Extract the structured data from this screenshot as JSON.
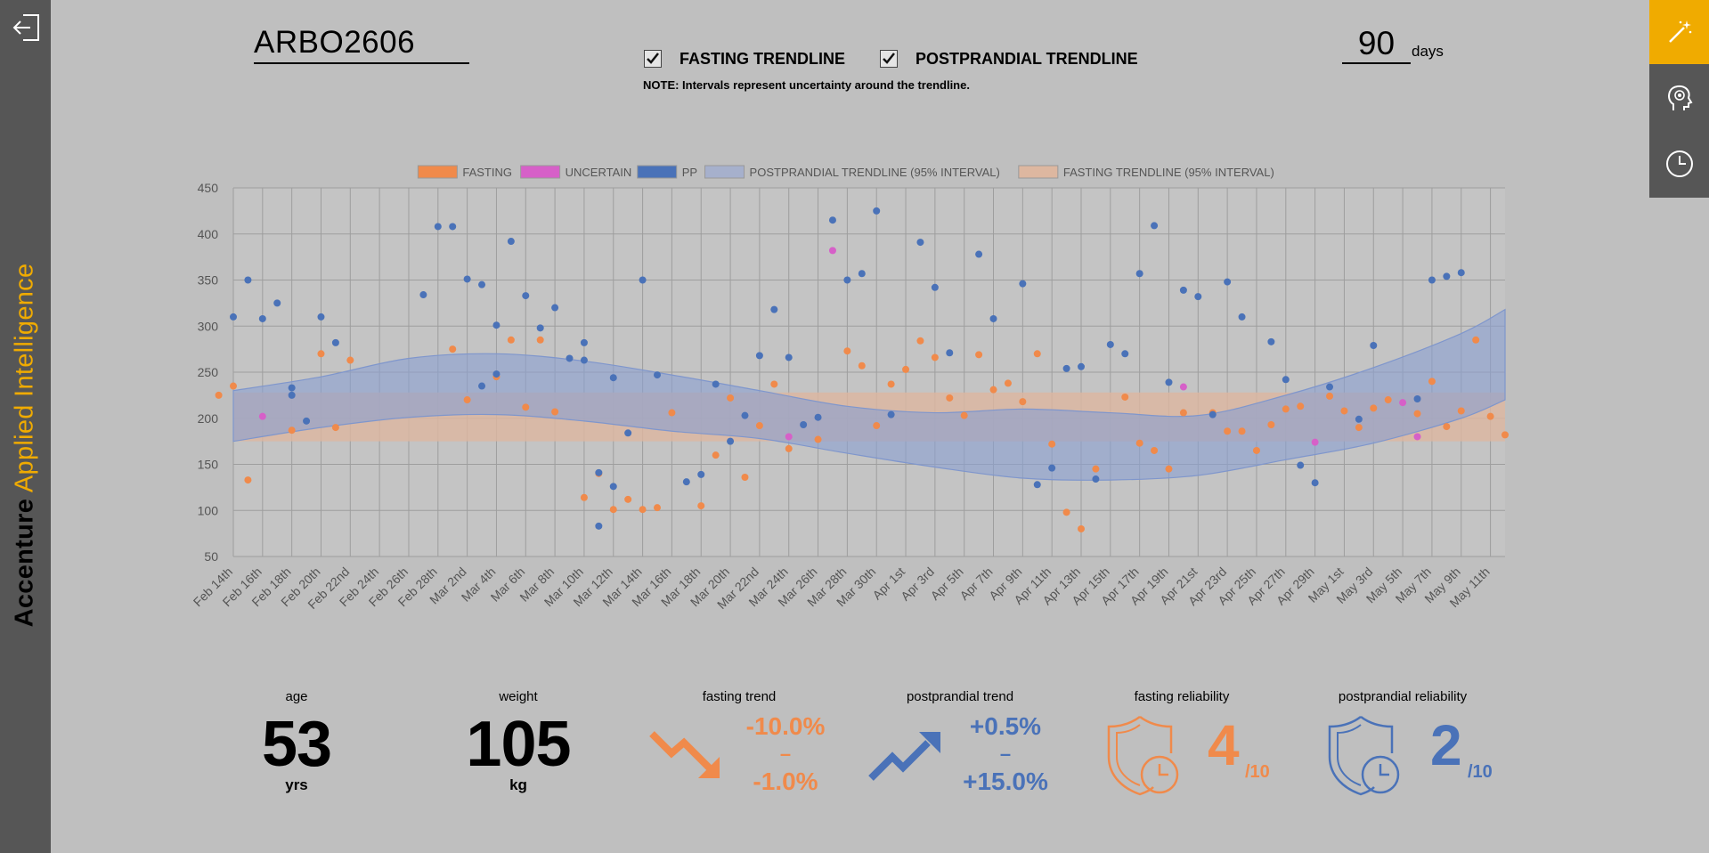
{
  "sidebar": {
    "brand_part1": "Accenture",
    "brand_part2": "Applied Intelligence",
    "back_icon": "back-arrow-icon"
  },
  "right_toolbar": {
    "items": [
      {
        "icon": "magic-wand-icon",
        "active": true
      },
      {
        "icon": "head-profile-icon",
        "active": false
      },
      {
        "icon": "clock-icon",
        "active": false
      }
    ]
  },
  "header": {
    "patient_id": "ARBO2606",
    "fasting_trendline_label": "FASTING TRENDLINE",
    "fasting_trendline_checked": true,
    "postprandial_trendline_label": "POSTPRANDIAL TRENDLINE",
    "postprandial_trendline_checked": true,
    "note": "NOTE: Intervals represent uncertainty around the trendline.",
    "days_value": "90",
    "days_unit": "days"
  },
  "colors": {
    "fasting": "#f08a4b",
    "uncertain": "#d660c8",
    "pp": "#4a72b8",
    "pp_band": "#8a9fd0",
    "fasting_band": "#e8a77c",
    "accent": "#f0ab00"
  },
  "chart_data": {
    "type": "scatter",
    "legend": [
      {
        "label": "FASTING",
        "color": "#f08a4b"
      },
      {
        "label": "UNCERTAIN",
        "color": "#d660c8"
      },
      {
        "label": "PP",
        "color": "#4a72b8"
      },
      {
        "label": "POSTPRANDIAL TRENDLINE (95% INTERVAL)",
        "color": "#a6b0cc"
      },
      {
        "label": "FASTING TRENDLINE (95% INTERVAL)",
        "color": "#ddb7a0"
      }
    ],
    "legend_position": "top-center",
    "grid": true,
    "ylim": [
      50,
      450
    ],
    "yticks": [
      50,
      100,
      150,
      200,
      250,
      300,
      350,
      400,
      450
    ],
    "x_start": "2019-02-14",
    "x_end": "2019-05-12",
    "xtick_labels": [
      "Feb 14th",
      "Feb 16th",
      "Feb 18th",
      "Feb 20th",
      "Feb 22nd",
      "Feb 24th",
      "Feb 26th",
      "Feb 28th",
      "Mar 2nd",
      "Mar 4th",
      "Mar 6th",
      "Mar 8th",
      "Mar 10th",
      "Mar 12th",
      "Mar 14th",
      "Mar 16th",
      "Mar 18th",
      "Mar 20th",
      "Mar 22nd",
      "Mar 24th",
      "Mar 26th",
      "Mar 28th",
      "Mar 30th",
      "Apr 1st",
      "Apr 3rd",
      "Apr 5th",
      "Apr 7th",
      "Apr 9th",
      "Apr 11th",
      "Apr 13th",
      "Apr 15th",
      "Apr 17th",
      "Apr 19th",
      "Apr 21st",
      "Apr 23rd",
      "Apr 25th",
      "Apr 27th",
      "Apr 29th",
      "May 1st",
      "May 3rd",
      "May 5th",
      "May 7th",
      "May 9th",
      "May 11th"
    ],
    "fasting_band": {
      "lower": 175,
      "upper": 228
    },
    "pp_band": [
      {
        "date": "2019-02-14",
        "lower": 175,
        "upper": 230
      },
      {
        "date": "2019-02-20",
        "lower": 190,
        "upper": 245
      },
      {
        "date": "2019-02-26",
        "lower": 201,
        "upper": 265
      },
      {
        "date": "2019-03-04",
        "lower": 204,
        "upper": 270
      },
      {
        "date": "2019-03-10",
        "lower": 197,
        "upper": 262
      },
      {
        "date": "2019-03-16",
        "lower": 186,
        "upper": 247
      },
      {
        "date": "2019-03-22",
        "lower": 178,
        "upper": 230
      },
      {
        "date": "2019-03-28",
        "lower": 162,
        "upper": 213
      },
      {
        "date": "2019-04-03",
        "lower": 147,
        "upper": 206
      },
      {
        "date": "2019-04-09",
        "lower": 135,
        "upper": 210
      },
      {
        "date": "2019-04-15",
        "lower": 133,
        "upper": 206
      },
      {
        "date": "2019-04-21",
        "lower": 138,
        "upper": 203
      },
      {
        "date": "2019-04-27",
        "lower": 155,
        "upper": 225
      },
      {
        "date": "2019-05-03",
        "lower": 173,
        "upper": 255
      },
      {
        "date": "2019-05-09",
        "lower": 200,
        "upper": 292
      },
      {
        "date": "2019-05-12",
        "lower": 220,
        "upper": 318
      }
    ],
    "series": [
      {
        "name": "FASTING",
        "color": "#f08a4b",
        "points": [
          [
            "2019-02-13",
            225
          ],
          [
            "2019-02-14",
            235
          ],
          [
            "2019-02-15",
            133
          ],
          [
            "2019-02-18",
            187
          ],
          [
            "2019-02-20",
            270
          ],
          [
            "2019-02-21",
            190
          ],
          [
            "2019-02-22",
            263
          ],
          [
            "2019-03-01",
            275
          ],
          [
            "2019-03-02",
            220
          ],
          [
            "2019-03-04",
            245
          ],
          [
            "2019-03-05",
            285
          ],
          [
            "2019-03-06",
            212
          ],
          [
            "2019-03-07",
            285
          ],
          [
            "2019-03-08",
            207
          ],
          [
            "2019-03-10",
            114
          ],
          [
            "2019-03-11",
            140
          ],
          [
            "2019-03-12",
            101
          ],
          [
            "2019-03-13",
            112
          ],
          [
            "2019-03-14",
            101
          ],
          [
            "2019-03-15",
            103
          ],
          [
            "2019-03-16",
            206
          ],
          [
            "2019-03-18",
            105
          ],
          [
            "2019-03-19",
            160
          ],
          [
            "2019-03-20",
            222
          ],
          [
            "2019-03-21",
            136
          ],
          [
            "2019-03-22",
            192
          ],
          [
            "2019-03-23",
            237
          ],
          [
            "2019-03-24",
            167
          ],
          [
            "2019-03-26",
            177
          ],
          [
            "2019-03-28",
            273
          ],
          [
            "2019-03-29",
            257
          ],
          [
            "2019-03-30",
            192
          ],
          [
            "2019-03-31",
            237
          ],
          [
            "2019-04-01",
            253
          ],
          [
            "2019-04-02",
            284
          ],
          [
            "2019-04-03",
            266
          ],
          [
            "2019-04-04",
            222
          ],
          [
            "2019-04-05",
            203
          ],
          [
            "2019-04-06",
            269
          ],
          [
            "2019-04-07",
            231
          ],
          [
            "2019-04-08",
            238
          ],
          [
            "2019-04-09",
            218
          ],
          [
            "2019-04-10",
            270
          ],
          [
            "2019-04-11",
            172
          ],
          [
            "2019-04-12",
            98
          ],
          [
            "2019-04-13",
            80
          ],
          [
            "2019-04-14",
            145
          ],
          [
            "2019-04-16",
            223
          ],
          [
            "2019-04-17",
            173
          ],
          [
            "2019-04-18",
            165
          ],
          [
            "2019-04-19",
            145
          ],
          [
            "2019-04-20",
            206
          ],
          [
            "2019-04-22",
            206
          ],
          [
            "2019-04-23",
            186
          ],
          [
            "2019-04-24",
            186
          ],
          [
            "2019-04-25",
            165
          ],
          [
            "2019-04-26",
            193
          ],
          [
            "2019-04-27",
            210
          ],
          [
            "2019-04-28",
            213
          ],
          [
            "2019-04-30",
            224
          ],
          [
            "2019-05-01",
            208
          ],
          [
            "2019-05-02",
            190
          ],
          [
            "2019-05-03",
            211
          ],
          [
            "2019-05-04",
            220
          ],
          [
            "2019-05-06",
            205
          ],
          [
            "2019-05-07",
            240
          ],
          [
            "2019-05-08",
            191
          ],
          [
            "2019-05-09",
            208
          ],
          [
            "2019-05-10",
            285
          ],
          [
            "2019-05-11",
            202
          ],
          [
            "2019-05-12",
            182
          ]
        ]
      },
      {
        "name": "UNCERTAIN",
        "color": "#d660c8",
        "points": [
          [
            "2019-02-16",
            202
          ],
          [
            "2019-03-24",
            180
          ],
          [
            "2019-03-27",
            382
          ],
          [
            "2019-04-20",
            234
          ],
          [
            "2019-04-29",
            174
          ],
          [
            "2019-05-05",
            217
          ],
          [
            "2019-05-06",
            180
          ]
        ]
      },
      {
        "name": "PP",
        "color": "#4a72b8",
        "points": [
          [
            "2019-02-14",
            310
          ],
          [
            "2019-02-15",
            350
          ],
          [
            "2019-02-16",
            308
          ],
          [
            "2019-02-17",
            325
          ],
          [
            "2019-02-18",
            225
          ],
          [
            "2019-02-18",
            233
          ],
          [
            "2019-02-19",
            197
          ],
          [
            "2019-02-20",
            310
          ],
          [
            "2019-02-21",
            282
          ],
          [
            "2019-02-27",
            334
          ],
          [
            "2019-02-28",
            408
          ],
          [
            "2019-03-01",
            408
          ],
          [
            "2019-03-02",
            351
          ],
          [
            "2019-03-03",
            235
          ],
          [
            "2019-03-03",
            345
          ],
          [
            "2019-03-04",
            301
          ],
          [
            "2019-03-04",
            248
          ],
          [
            "2019-03-05",
            392
          ],
          [
            "2019-03-06",
            333
          ],
          [
            "2019-03-07",
            298
          ],
          [
            "2019-03-08",
            320
          ],
          [
            "2019-03-09",
            265
          ],
          [
            "2019-03-10",
            282
          ],
          [
            "2019-03-10",
            263
          ],
          [
            "2019-03-11",
            83
          ],
          [
            "2019-03-11",
            141
          ],
          [
            "2019-03-12",
            244
          ],
          [
            "2019-03-12",
            126
          ],
          [
            "2019-03-13",
            184
          ],
          [
            "2019-03-14",
            350
          ],
          [
            "2019-03-15",
            247
          ],
          [
            "2019-03-17",
            131
          ],
          [
            "2019-03-18",
            139
          ],
          [
            "2019-03-19",
            237
          ],
          [
            "2019-03-20",
            175
          ],
          [
            "2019-03-21",
            203
          ],
          [
            "2019-03-22",
            268
          ],
          [
            "2019-03-23",
            318
          ],
          [
            "2019-03-24",
            266
          ],
          [
            "2019-03-25",
            193
          ],
          [
            "2019-03-26",
            201
          ],
          [
            "2019-03-27",
            415
          ],
          [
            "2019-03-28",
            350
          ],
          [
            "2019-03-29",
            357
          ],
          [
            "2019-03-30",
            425
          ],
          [
            "2019-03-31",
            204
          ],
          [
            "2019-04-02",
            391
          ],
          [
            "2019-04-03",
            342
          ],
          [
            "2019-04-04",
            271
          ],
          [
            "2019-04-06",
            378
          ],
          [
            "2019-04-07",
            308
          ],
          [
            "2019-04-09",
            346
          ],
          [
            "2019-04-10",
            128
          ],
          [
            "2019-04-11",
            146
          ],
          [
            "2019-04-12",
            254
          ],
          [
            "2019-04-13",
            256
          ],
          [
            "2019-04-14",
            134
          ],
          [
            "2019-04-15",
            280
          ],
          [
            "2019-04-16",
            270
          ],
          [
            "2019-04-17",
            357
          ],
          [
            "2019-04-18",
            409
          ],
          [
            "2019-04-19",
            239
          ],
          [
            "2019-04-20",
            339
          ],
          [
            "2019-04-21",
            332
          ],
          [
            "2019-04-22",
            204
          ],
          [
            "2019-04-23",
            348
          ],
          [
            "2019-04-24",
            310
          ],
          [
            "2019-04-26",
            283
          ],
          [
            "2019-04-27",
            242
          ],
          [
            "2019-04-28",
            149
          ],
          [
            "2019-04-29",
            130
          ],
          [
            "2019-04-30",
            234
          ],
          [
            "2019-05-02",
            199
          ],
          [
            "2019-05-03",
            279
          ],
          [
            "2019-05-06",
            221
          ],
          [
            "2019-05-07",
            350
          ],
          [
            "2019-05-08",
            354
          ],
          [
            "2019-05-09",
            358
          ]
        ]
      }
    ]
  },
  "stats": {
    "age": {
      "label": "age",
      "value": "53",
      "unit": "yrs"
    },
    "weight": {
      "label": "weight",
      "value": "105",
      "unit": "kg"
    },
    "fasting_trend": {
      "label": "fasting trend",
      "low": "-10.0%",
      "dash": "–",
      "high": "-1.0%",
      "icon": "trend-down-arrow-icon"
    },
    "postprandial_trend": {
      "label": "postprandial trend",
      "low": "+0.5%",
      "dash": "–",
      "high": "+15.0%",
      "icon": "trend-up-arrow-icon"
    },
    "fasting_reliability": {
      "label": "fasting reliability",
      "value": "4",
      "denominator": "/10",
      "icon": "shield-clock-icon"
    },
    "postprandial_reliability": {
      "label": "postprandial reliability",
      "value": "2",
      "denominator": "/10",
      "icon": "shield-clock-icon"
    }
  }
}
